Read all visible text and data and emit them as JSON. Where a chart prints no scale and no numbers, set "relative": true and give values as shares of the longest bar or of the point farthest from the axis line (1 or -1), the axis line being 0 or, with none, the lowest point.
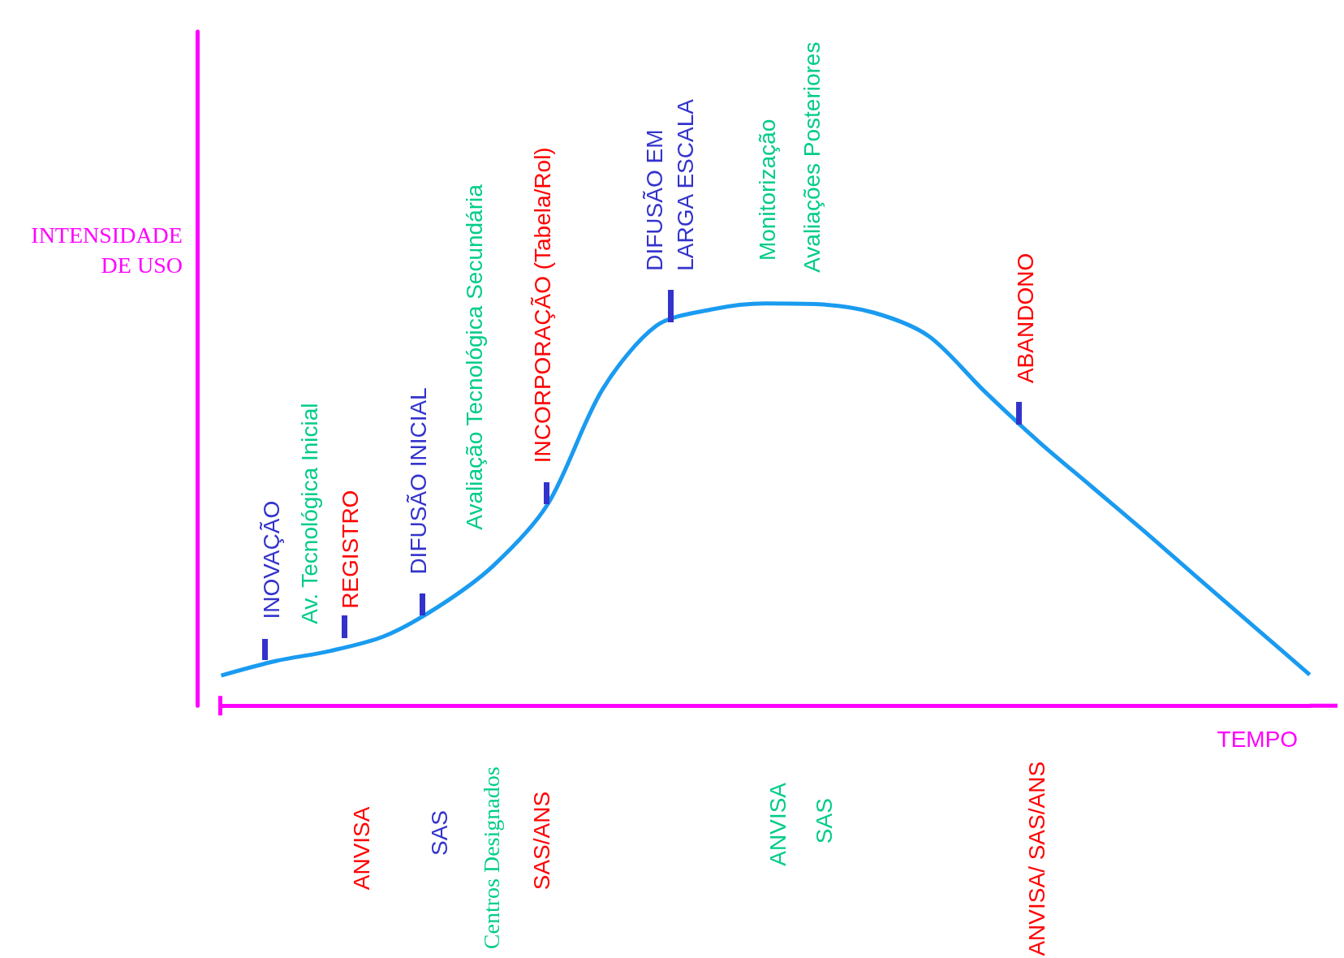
{
  "chart_data": {
    "type": "line",
    "relative": true,
    "xlabel": "TEMPO",
    "ylabel": "INTENSIDADE\nDE USO",
    "color": "#1a9bf0",
    "categories": [
      null,
      null,
      null,
      null,
      null,
      null,
      null,
      null,
      null,
      null,
      null,
      null,
      null,
      null,
      null,
      null,
      null,
      null,
      null,
      null,
      null
    ],
    "values": [
      0.075,
      0.111,
      0.136,
      0.173,
      0.247,
      0.348,
      0.501,
      0.785,
      0.945,
      0.985,
      1,
      0.998,
      0.977,
      0.919,
      0.785,
      0.659,
      0.544,
      0.429,
      0.311,
      0.194,
      0.077
    ],
    "annotations": [
      "INOVAÇÃO",
      "Av. Tecnológica Inicial",
      "REGISTRO",
      "DIFUSÃO INICIAL",
      "Avaliação Tecnológica Secundária",
      "INCORPORAÇÃO (Tabela/Rol)",
      "DIFUSÃO EM\nLARGA ESCALA",
      "Monitorização",
      "Avaliações Posteriores",
      "ABANDONO",
      "ANVISA",
      "SAS",
      "Centros Designados",
      "SAS/ANS",
      "ANVISA",
      "SAS",
      "ANVISA/ SAS/ANS"
    ]
  }
}
